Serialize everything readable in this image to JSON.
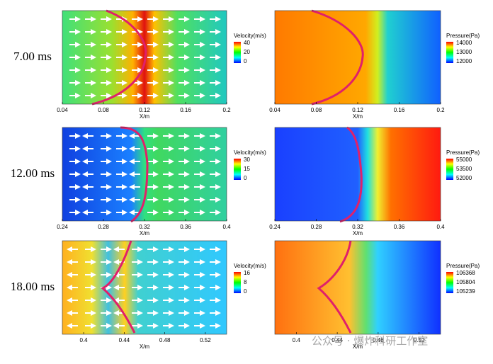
{
  "rows": [
    {
      "time": "7.00 ms",
      "velocity": {
        "xlim": [
          0.04,
          0.2
        ],
        "xticks": [
          0.04,
          0.08,
          0.12,
          0.16,
          0.2
        ],
        "xlabel": "X/m",
        "colorbar": {
          "label": "Velocity(m/s)",
          "ticks": [
            40,
            20,
            0
          ]
        }
      },
      "pressure": {
        "xlim": [
          0.04,
          0.2
        ],
        "xticks": [
          0.04,
          0.08,
          0.12,
          0.16,
          0.2
        ],
        "xlabel": "X/m",
        "colorbar": {
          "label": "Pressure(Pa)",
          "ticks": [
            14000,
            13000,
            12000
          ]
        }
      }
    },
    {
      "time": "12.00 ms",
      "velocity": {
        "xlim": [
          0.24,
          0.4
        ],
        "xticks": [
          0.24,
          0.28,
          0.32,
          0.36,
          0.4
        ],
        "xlabel": "X/m",
        "colorbar": {
          "label": "Velocity(m/s)",
          "ticks": [
            30,
            15,
            0
          ]
        }
      },
      "pressure": {
        "xlim": [
          0.24,
          0.4
        ],
        "xticks": [
          0.24,
          0.28,
          0.32,
          0.36,
          0.4
        ],
        "xlabel": "X/m",
        "colorbar": {
          "label": "Pressure(Pa)",
          "ticks": [
            55000,
            53500,
            52000
          ]
        }
      }
    },
    {
      "time": "18.00 ms",
      "velocity": {
        "xlim": [
          0.379,
          0.541
        ],
        "xticks": [
          0.4,
          0.44,
          0.48,
          0.52
        ],
        "xlabel": "X/m",
        "colorbar": {
          "label": "Velocity(m/s)",
          "ticks": [
            16,
            8,
            0
          ]
        }
      },
      "pressure": {
        "xlim": [
          0.379,
          0.541
        ],
        "xticks": [
          0.4,
          0.44,
          0.48,
          0.52
        ],
        "xlabel": "X/m",
        "colorbar": {
          "label": "Pressure(Pa)",
          "ticks": [
            106368,
            105804,
            105239
          ]
        }
      }
    }
  ],
  "watermark": "公众号 · 爆炸科研工作室"
}
